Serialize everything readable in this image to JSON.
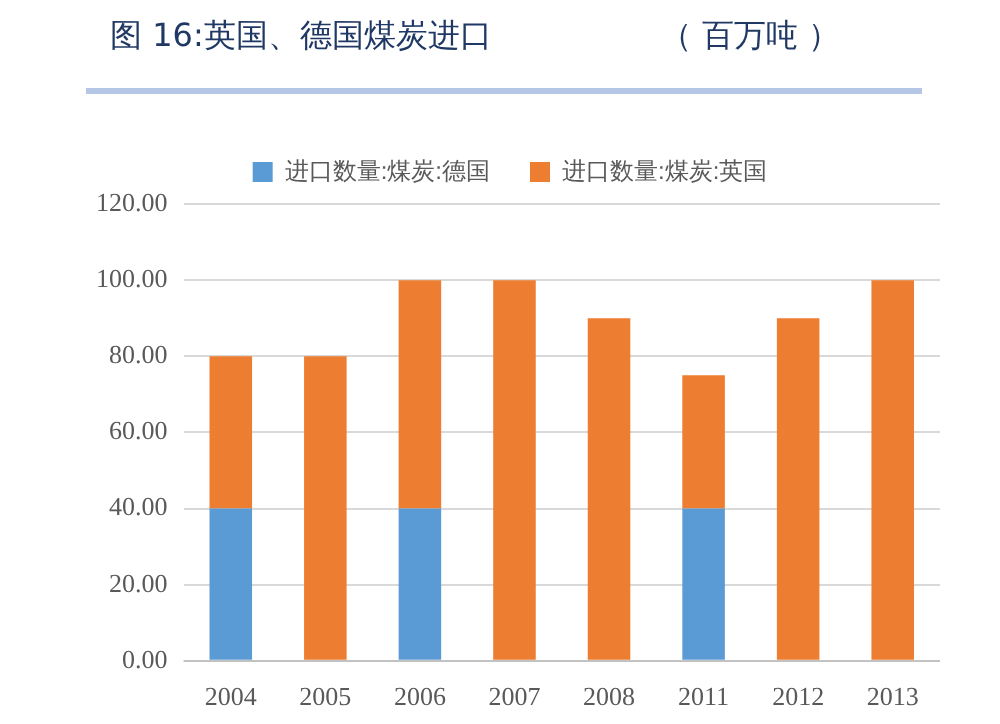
{
  "chart_data": {
    "type": "bar",
    "title": "图 16:英国、德国煤炭进口",
    "ylabel": "（ 百万吨 ）",
    "stacked": true,
    "categories": [
      "2004",
      "2005",
      "2006",
      "2007",
      "2008",
      "2011",
      "2012",
      "2013"
    ],
    "series": [
      {
        "name": "进口数量:煤炭:德国",
        "color": "#5b9bd5",
        "values": [
          40,
          0,
          40,
          0,
          0,
          40,
          0,
          0
        ]
      },
      {
        "name": "进口数量:煤炭:英国",
        "color": "#ed7d31",
        "values": [
          40,
          80,
          60,
          100,
          90,
          35,
          90,
          100
        ]
      }
    ],
    "ylim": [
      0,
      120
    ],
    "yticks": [
      {
        "value": 0,
        "label": "0.00"
      },
      {
        "value": 20,
        "label": "20.00"
      },
      {
        "value": 40,
        "label": "40.00"
      },
      {
        "value": 60,
        "label": "60.00"
      },
      {
        "value": 80,
        "label": "80.00"
      },
      {
        "value": 100,
        "label": "100.00"
      },
      {
        "value": 120,
        "label": "120.00"
      }
    ],
    "grid": "y",
    "legend": "top"
  }
}
